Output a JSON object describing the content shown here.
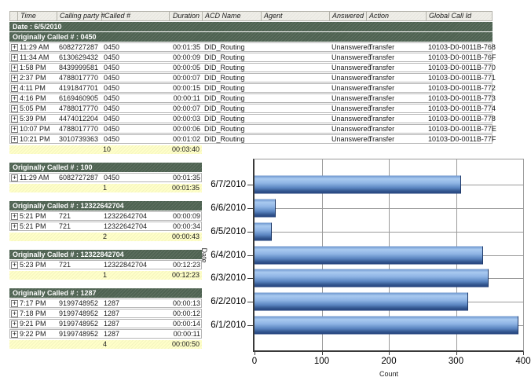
{
  "colors": {
    "group_header_bg": "#4e6251",
    "summary_bg": "#ffffc9",
    "header_bg": "#efeee8",
    "header_border": "#b3b2aa",
    "row_border": "#b5b5b5",
    "bar_blue_light": "#a9caf0",
    "bar_blue_mid": "#6b94cc",
    "bar_blue_dark": "#24427c",
    "axis": "#3a3a3a",
    "grid": "#9a9a9a"
  },
  "icons": {
    "expand": "+"
  },
  "report": {
    "columns": [
      {
        "key": "expand",
        "label": ""
      },
      {
        "key": "time",
        "label": "Time"
      },
      {
        "key": "calling",
        "label": "Calling party #"
      },
      {
        "key": "called",
        "label": "Called #"
      },
      {
        "key": "duration",
        "label": "Duration"
      },
      {
        "key": "acd",
        "label": "ACD Name"
      },
      {
        "key": "agent",
        "label": "Agent"
      },
      {
        "key": "answered",
        "label": "Answered"
      },
      {
        "key": "action",
        "label": "Action"
      },
      {
        "key": "global",
        "label": "Global Call Id"
      }
    ],
    "sections": [
      {
        "date_header": "Date : 6/5/2010",
        "group": "Originally Called # : 0450",
        "full": true,
        "rows": [
          {
            "time": "11:29 AM",
            "calling": "6082727287",
            "called": "0450",
            "duration": "00:01:35",
            "acd": "DID_Routing",
            "agent": "",
            "answered": "Unanswered",
            "action": "Transfer",
            "global": "10103-D0-0011B-768"
          },
          {
            "time": "11:34 AM",
            "calling": "6130629432",
            "called": "0450",
            "duration": "00:00:09",
            "acd": "DID_Routing",
            "agent": "",
            "answered": "Unanswered",
            "action": "Transfer",
            "global": "10103-D0-0011B-76F"
          },
          {
            "time": "1:58 PM",
            "calling": "8439999581",
            "called": "0450",
            "duration": "00:00:05",
            "acd": "DID_Routing",
            "agent": "",
            "answered": "Unanswered",
            "action": "Transfer",
            "global": "10103-D0-0011B-770"
          },
          {
            "time": "2:37 PM",
            "calling": "4788017770",
            "called": "0450",
            "duration": "00:00:07",
            "acd": "DID_Routing",
            "agent": "",
            "answered": "Unanswered",
            "action": "Transfer",
            "global": "10103-D0-0011B-771"
          },
          {
            "time": "4:11 PM",
            "calling": "4191847701",
            "called": "0450",
            "duration": "00:00:15",
            "acd": "DID_Routing",
            "agent": "",
            "answered": "Unanswered",
            "action": "Transfer",
            "global": "10103-D0-0011B-772"
          },
          {
            "time": "4:16 PM",
            "calling": "6169460905",
            "called": "0450",
            "duration": "00:00:11",
            "acd": "DID_Routing",
            "agent": "",
            "answered": "Unanswered",
            "action": "Transfer",
            "global": "10103-D0-0011B-773"
          },
          {
            "time": "5:05 PM",
            "calling": "4788017770",
            "called": "0450",
            "duration": "00:00:07",
            "acd": "DID_Routing",
            "agent": "",
            "answered": "Unanswered",
            "action": "Transfer",
            "global": "10103-D0-0011B-774"
          },
          {
            "time": "5:39 PM",
            "calling": "4474012204",
            "called": "0450",
            "duration": "00:00:03",
            "acd": "DID_Routing",
            "agent": "",
            "answered": "Unanswered",
            "action": "Transfer",
            "global": "10103-D0-0011B-778"
          },
          {
            "time": "10:07 PM",
            "calling": "4788017770",
            "called": "0450",
            "duration": "00:00:06",
            "acd": "DID_Routing",
            "agent": "",
            "answered": "Unanswered",
            "action": "Transfer",
            "global": "10103-D0-0011B-77E"
          },
          {
            "time": "10:21 PM",
            "calling": "3010739363",
            "called": "0450",
            "duration": "00:01:02",
            "acd": "DID_Routing",
            "agent": "",
            "answered": "Unanswered",
            "action": "Transfer",
            "global": "10103-D0-0011B-77F"
          }
        ],
        "summary": {
          "count": "10",
          "duration": "00:03:40"
        }
      },
      {
        "group": "Originally Called # : 100",
        "full": false,
        "rows": [
          {
            "time": "11:29 AM",
            "calling": "6082727287",
            "called": "0450",
            "duration": "00:01:35"
          }
        ],
        "summary": {
          "count": "1",
          "duration": "00:01:35"
        }
      },
      {
        "group": "Originally Called # : 12322642704",
        "full": false,
        "rows": [
          {
            "time": "5:21 PM",
            "calling": "721",
            "called": "12322642704",
            "duration": "00:00:09"
          },
          {
            "time": "5:21 PM",
            "calling": "721",
            "called": "12322642704",
            "duration": "00:00:34"
          }
        ],
        "summary": {
          "count": "2",
          "duration": "00:00:43"
        }
      },
      {
        "group": "Originally Called # : 12322842704",
        "full": false,
        "rows": [
          {
            "time": "5:23 PM",
            "calling": "721",
            "called": "12322842704",
            "duration": "00:12:23"
          }
        ],
        "summary": {
          "count": "1",
          "duration": "00:12:23"
        }
      },
      {
        "group": "Originally Called # : 1287",
        "full": false,
        "rows": [
          {
            "time": "7:17 PM",
            "calling": "9199748952",
            "called": "1287",
            "duration": "00:00:13"
          },
          {
            "time": "7:18 PM",
            "calling": "9199748952",
            "called": "1287",
            "duration": "00:00:12"
          },
          {
            "time": "9:21 PM",
            "calling": "9199748952",
            "called": "1287",
            "duration": "00:00:14"
          },
          {
            "time": "9:22 PM",
            "calling": "9199748952",
            "called": "1287",
            "duration": "00:00:11"
          }
        ],
        "summary": {
          "count": "4",
          "duration": "00:00:50"
        }
      }
    ]
  },
  "chart_data": {
    "type": "bar",
    "orientation": "horizontal",
    "categories": [
      "6/7/2010",
      "6/6/2010",
      "6/5/2010",
      "6/4/2010",
      "6/3/2010",
      "6/2/2010",
      "6/1/2010"
    ],
    "values": [
      308,
      31,
      26,
      340,
      348,
      318,
      393
    ],
    "title": "",
    "xlabel": "Count",
    "ylabel": "Date",
    "xlim": [
      0,
      400
    ],
    "xticks": [
      0,
      100,
      200,
      300,
      400
    ],
    "grid": true,
    "legend": false
  }
}
